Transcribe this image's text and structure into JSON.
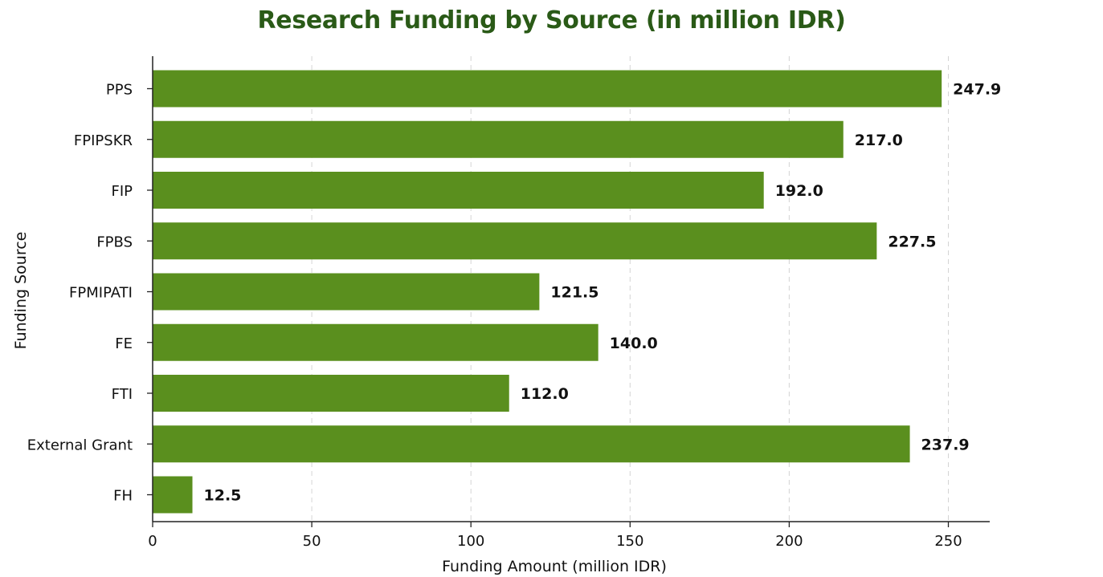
{
  "chart_data": {
    "type": "bar",
    "orientation": "horizontal",
    "title": "Research Funding by Source (in million IDR)",
    "xlabel": "Funding Amount (million IDR)",
    "ylabel": "Funding Source",
    "categories": [
      "PPS",
      "FPIPSKR",
      "FIP",
      "FPBS",
      "FPMIPATI",
      "FE",
      "FTI",
      "External Grant",
      "FH"
    ],
    "values": [
      247.9,
      217.0,
      192.0,
      227.5,
      121.5,
      140.0,
      112.0,
      237.9,
      12.5
    ],
    "value_labels": [
      "247.9",
      "217.0",
      "192.0",
      "227.5",
      "121.5",
      "140.0",
      "112.0",
      "237.9",
      "12.5"
    ],
    "xticks": [
      0,
      50,
      100,
      150,
      200,
      250
    ],
    "xtick_labels": [
      "0",
      "50",
      "100",
      "150",
      "200",
      "250"
    ],
    "xlim": [
      0,
      260
    ],
    "grid": "vertical-dashed",
    "bar_color": "#5a8f1e",
    "title_color": "#2a5a17",
    "legend": "none"
  }
}
